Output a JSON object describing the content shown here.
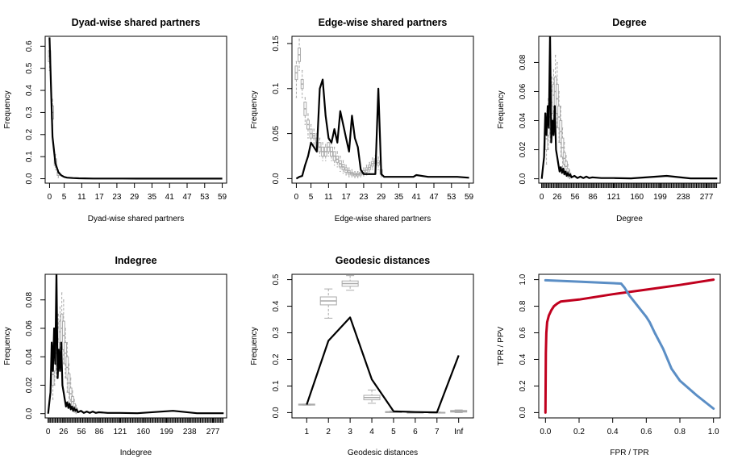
{
  "chart_data": [
    {
      "type": "line",
      "title": "Dyad-wise shared partners",
      "xlabel": "Dyad-wise shared partners",
      "ylabel": "Frequency",
      "xlim": [
        -1.5,
        60.5
      ],
      "ylim": [
        -0.02,
        0.645
      ],
      "xticks": [
        0,
        5,
        11,
        17,
        23,
        29,
        35,
        41,
        47,
        53,
        59
      ],
      "yticks": [
        0.0,
        0.1,
        0.2,
        0.3,
        0.4,
        0.5,
        0.6
      ],
      "observed": {
        "x": [
          0,
          1,
          2,
          3,
          4,
          5,
          6,
          8,
          10,
          12,
          15,
          20,
          25,
          30,
          40,
          50,
          59
        ],
        "y": [
          0.64,
          0.19,
          0.07,
          0.03,
          0.015,
          0.008,
          0.005,
          0.003,
          0.002,
          0.0015,
          0.001,
          0.001,
          0.0008,
          0.0005,
          0.0004,
          0.0003,
          0.0003
        ]
      },
      "simulated": [
        {
          "x": 0,
          "q1": 0.53,
          "q3": 0.58,
          "lo": 0.49,
          "hi": 0.62
        },
        {
          "x": 1,
          "q1": 0.27,
          "q3": 0.33,
          "lo": 0.24,
          "hi": 0.36
        },
        {
          "x": 2,
          "q1": 0.06,
          "q3": 0.09,
          "lo": 0.04,
          "hi": 0.11
        },
        {
          "x": 3,
          "q1": 0.015,
          "q3": 0.03,
          "lo": 0.005,
          "hi": 0.04
        }
      ]
    },
    {
      "type": "line",
      "title": "Edge-wise shared partners",
      "xlabel": "Edge-wise shared partners",
      "ylabel": "Frequency",
      "xlim": [
        -1.5,
        60.5
      ],
      "ylim": [
        -0.005,
        0.158
      ],
      "xticks": [
        0,
        5,
        11,
        17,
        23,
        29,
        35,
        41,
        47,
        53,
        59
      ],
      "yticks": [
        0.0,
        0.05,
        0.1,
        0.15
      ],
      "observed": {
        "x": [
          0,
          1,
          2,
          3,
          4,
          5,
          6,
          7,
          8,
          9,
          10,
          11,
          12,
          13,
          14,
          15,
          16,
          17,
          18,
          19,
          20,
          21,
          22,
          23,
          24,
          25,
          26,
          27,
          28,
          29,
          30,
          31,
          35,
          40,
          41,
          45,
          50,
          55,
          59
        ],
        "y": [
          0.0,
          0.002,
          0.003,
          0.015,
          0.025,
          0.04,
          0.035,
          0.03,
          0.1,
          0.11,
          0.07,
          0.045,
          0.04,
          0.055,
          0.04,
          0.075,
          0.06,
          0.045,
          0.03,
          0.07,
          0.045,
          0.035,
          0.01,
          0.005,
          0.005,
          0.005,
          0.005,
          0.005,
          0.1,
          0.005,
          0.002,
          0.002,
          0.002,
          0.002,
          0.004,
          0.002,
          0.002,
          0.002,
          0.001
        ]
      },
      "simulated": [
        {
          "x": 0,
          "q1": 0.11,
          "q3": 0.125,
          "lo": 0.09,
          "hi": 0.13
        },
        {
          "x": 1,
          "q1": 0.13,
          "q3": 0.145,
          "lo": 0.12,
          "hi": 0.155
        },
        {
          "x": 2,
          "q1": 0.1,
          "q3": 0.11,
          "lo": 0.09,
          "hi": 0.12
        },
        {
          "x": 3,
          "q1": 0.07,
          "q3": 0.085,
          "lo": 0.06,
          "hi": 0.09
        },
        {
          "x": 4,
          "q1": 0.055,
          "q3": 0.065,
          "lo": 0.045,
          "hi": 0.072
        },
        {
          "x": 5,
          "q1": 0.045,
          "q3": 0.055,
          "lo": 0.04,
          "hi": 0.06
        },
        {
          "x": 6,
          "q1": 0.045,
          "q3": 0.05,
          "lo": 0.038,
          "hi": 0.055
        },
        {
          "x": 7,
          "q1": 0.035,
          "q3": 0.045,
          "lo": 0.03,
          "hi": 0.05
        },
        {
          "x": 8,
          "q1": 0.03,
          "q3": 0.04,
          "lo": 0.025,
          "hi": 0.045
        },
        {
          "x": 9,
          "q1": 0.025,
          "q3": 0.035,
          "lo": 0.02,
          "hi": 0.04
        },
        {
          "x": 10,
          "q1": 0.025,
          "q3": 0.035,
          "lo": 0.02,
          "hi": 0.038
        },
        {
          "x": 11,
          "q1": 0.03,
          "q3": 0.04,
          "lo": 0.025,
          "hi": 0.045
        },
        {
          "x": 12,
          "q1": 0.025,
          "q3": 0.035,
          "lo": 0.02,
          "hi": 0.04
        },
        {
          "x": 13,
          "q1": 0.02,
          "q3": 0.03,
          "lo": 0.015,
          "hi": 0.035
        },
        {
          "x": 14,
          "q1": 0.018,
          "q3": 0.025,
          "lo": 0.013,
          "hi": 0.03
        },
        {
          "x": 15,
          "q1": 0.013,
          "q3": 0.02,
          "lo": 0.008,
          "hi": 0.025
        },
        {
          "x": 16,
          "q1": 0.01,
          "q3": 0.016,
          "lo": 0.006,
          "hi": 0.02
        },
        {
          "x": 17,
          "q1": 0.007,
          "q3": 0.012,
          "lo": 0.004,
          "hi": 0.015
        },
        {
          "x": 18,
          "q1": 0.005,
          "q3": 0.009,
          "lo": 0.002,
          "hi": 0.012
        },
        {
          "x": 19,
          "q1": 0.004,
          "q3": 0.007,
          "lo": 0.002,
          "hi": 0.01
        },
        {
          "x": 20,
          "q1": 0.003,
          "q3": 0.006,
          "lo": 0.001,
          "hi": 0.008
        },
        {
          "x": 21,
          "q1": 0.003,
          "q3": 0.006,
          "lo": 0.001,
          "hi": 0.008
        },
        {
          "x": 22,
          "q1": 0.004,
          "q3": 0.007,
          "lo": 0.002,
          "hi": 0.009
        },
        {
          "x": 23,
          "q1": 0.005,
          "q3": 0.009,
          "lo": 0.003,
          "hi": 0.012
        },
        {
          "x": 24,
          "q1": 0.007,
          "q3": 0.012,
          "lo": 0.004,
          "hi": 0.015
        },
        {
          "x": 25,
          "q1": 0.01,
          "q3": 0.015,
          "lo": 0.006,
          "hi": 0.018
        },
        {
          "x": 26,
          "q1": 0.014,
          "q3": 0.019,
          "lo": 0.01,
          "hi": 0.023
        },
        {
          "x": 27,
          "q1": 0.017,
          "q3": 0.022,
          "lo": 0.013,
          "hi": 0.026
        },
        {
          "x": 28,
          "q1": 0.015,
          "q3": 0.02,
          "lo": 0.01,
          "hi": 0.024
        },
        {
          "x": 29,
          "q1": 0.005,
          "q3": 0.01,
          "lo": 0.002,
          "hi": 0.013
        }
      ]
    },
    {
      "type": "line",
      "title": "Degree",
      "xlabel": "Degree",
      "ylabel": "Frequency",
      "xlim": [
        -5,
        300
      ],
      "ylim": [
        -0.003,
        0.098
      ],
      "xticks": [
        0,
        26,
        56,
        86,
        121,
        160,
        199,
        238,
        277
      ],
      "yticks": [
        0.0,
        0.02,
        0.04,
        0.06,
        0.08
      ],
      "observed": {
        "x": [
          0,
          2,
          4,
          6,
          8,
          10,
          12,
          14,
          16,
          18,
          20,
          22,
          24,
          26,
          28,
          30,
          32,
          34,
          36,
          38,
          40,
          42,
          44,
          46,
          48,
          50,
          55,
          60,
          65,
          70,
          75,
          80,
          85,
          100,
          121,
          150,
          210,
          250,
          295
        ],
        "y": [
          0.0,
          0.008,
          0.015,
          0.045,
          0.03,
          0.05,
          0.035,
          0.1,
          0.025,
          0.04,
          0.03,
          0.05,
          0.02,
          0.015,
          0.01,
          0.005,
          0.008,
          0.004,
          0.007,
          0.003,
          0.005,
          0.002,
          0.004,
          0.002,
          0.003,
          0.001,
          0.002,
          0.0005,
          0.0015,
          0.0005,
          0.0015,
          0.0005,
          0.001,
          0.0005,
          0.0005,
          0.0003,
          0.002,
          0.0003,
          0.0003
        ]
      },
      "simulated": [
        {
          "x": 8,
          "q1": 0.02,
          "q3": 0.035,
          "lo": 0.01,
          "hi": 0.045
        },
        {
          "x": 11,
          "q1": 0.03,
          "q3": 0.045,
          "lo": 0.02,
          "hi": 0.055
        },
        {
          "x": 14,
          "q1": 0.035,
          "q3": 0.05,
          "lo": 0.025,
          "hi": 0.06
        },
        {
          "x": 17,
          "q1": 0.045,
          "q3": 0.06,
          "lo": 0.035,
          "hi": 0.07
        },
        {
          "x": 20,
          "q1": 0.05,
          "q3": 0.065,
          "lo": 0.04,
          "hi": 0.075
        },
        {
          "x": 23,
          "q1": 0.05,
          "q3": 0.07,
          "lo": 0.04,
          "hi": 0.085
        },
        {
          "x": 26,
          "q1": 0.045,
          "q3": 0.065,
          "lo": 0.035,
          "hi": 0.08
        },
        {
          "x": 29,
          "q1": 0.035,
          "q3": 0.05,
          "lo": 0.025,
          "hi": 0.06
        },
        {
          "x": 32,
          "q1": 0.025,
          "q3": 0.04,
          "lo": 0.015,
          "hi": 0.05
        },
        {
          "x": 35,
          "q1": 0.015,
          "q3": 0.028,
          "lo": 0.008,
          "hi": 0.035
        },
        {
          "x": 38,
          "q1": 0.01,
          "q3": 0.018,
          "lo": 0.005,
          "hi": 0.025
        },
        {
          "x": 41,
          "q1": 0.005,
          "q3": 0.012,
          "lo": 0.002,
          "hi": 0.016
        },
        {
          "x": 44,
          "q1": 0.003,
          "q3": 0.007,
          "lo": 0.001,
          "hi": 0.01
        },
        {
          "x": 47,
          "q1": 0.001,
          "q3": 0.004,
          "lo": 0.0,
          "hi": 0.006
        }
      ]
    },
    {
      "type": "line",
      "title": "Indegree",
      "xlabel": "Indegree",
      "ylabel": "Frequency",
      "xlim": [
        -5,
        300
      ],
      "ylim": [
        -0.003,
        0.098
      ],
      "xticks": [
        0,
        26,
        56,
        86,
        121,
        160,
        199,
        238,
        277
      ],
      "yticks": [
        0.0,
        0.02,
        0.04,
        0.06,
        0.08
      ],
      "observed": {
        "x": [
          0,
          2,
          4,
          6,
          8,
          10,
          12,
          14,
          16,
          18,
          20,
          22,
          24,
          26,
          28,
          30,
          32,
          34,
          36,
          38,
          40,
          42,
          44,
          46,
          48,
          50,
          55,
          60,
          65,
          70,
          75,
          80,
          85,
          100,
          121,
          150,
          210,
          250,
          295
        ],
        "y": [
          0.0,
          0.008,
          0.015,
          0.05,
          0.03,
          0.06,
          0.035,
          0.1,
          0.025,
          0.045,
          0.03,
          0.05,
          0.02,
          0.015,
          0.01,
          0.005,
          0.008,
          0.004,
          0.007,
          0.003,
          0.005,
          0.002,
          0.004,
          0.002,
          0.003,
          0.001,
          0.002,
          0.0005,
          0.0015,
          0.0005,
          0.0015,
          0.0005,
          0.001,
          0.0005,
          0.0005,
          0.0003,
          0.002,
          0.0003,
          0.0003
        ]
      },
      "simulated": [
        {
          "x": 8,
          "q1": 0.02,
          "q3": 0.035,
          "lo": 0.01,
          "hi": 0.045
        },
        {
          "x": 11,
          "q1": 0.03,
          "q3": 0.045,
          "lo": 0.02,
          "hi": 0.055
        },
        {
          "x": 14,
          "q1": 0.035,
          "q3": 0.05,
          "lo": 0.025,
          "hi": 0.06
        },
        {
          "x": 17,
          "q1": 0.045,
          "q3": 0.06,
          "lo": 0.035,
          "hi": 0.07
        },
        {
          "x": 20,
          "q1": 0.05,
          "q3": 0.065,
          "lo": 0.04,
          "hi": 0.075
        },
        {
          "x": 23,
          "q1": 0.05,
          "q3": 0.07,
          "lo": 0.04,
          "hi": 0.085
        },
        {
          "x": 26,
          "q1": 0.045,
          "q3": 0.065,
          "lo": 0.035,
          "hi": 0.08
        },
        {
          "x": 29,
          "q1": 0.035,
          "q3": 0.05,
          "lo": 0.025,
          "hi": 0.06
        },
        {
          "x": 32,
          "q1": 0.025,
          "q3": 0.04,
          "lo": 0.015,
          "hi": 0.05
        },
        {
          "x": 35,
          "q1": 0.015,
          "q3": 0.028,
          "lo": 0.008,
          "hi": 0.035
        },
        {
          "x": 38,
          "q1": 0.01,
          "q3": 0.018,
          "lo": 0.005,
          "hi": 0.025
        },
        {
          "x": 41,
          "q1": 0.005,
          "q3": 0.012,
          "lo": 0.002,
          "hi": 0.016
        },
        {
          "x": 44,
          "q1": 0.003,
          "q3": 0.007,
          "lo": 0.001,
          "hi": 0.01
        },
        {
          "x": 47,
          "q1": 0.001,
          "q3": 0.004,
          "lo": 0.0,
          "hi": 0.006
        }
      ]
    },
    {
      "type": "line",
      "title": "Geodesic distances",
      "xlabel": "Geodesic distances",
      "ylabel": "Frequency",
      "categories": [
        "1",
        "2",
        "3",
        "4",
        "5",
        "6",
        "7",
        "Inf"
      ],
      "xlim": [
        0.32,
        8.68
      ],
      "ylim": [
        -0.02,
        0.52
      ],
      "yticks": [
        0.0,
        0.1,
        0.2,
        0.3,
        0.4,
        0.5
      ],
      "observed": {
        "values": [
          0.03,
          0.27,
          0.358,
          0.125,
          0.005,
          0.002,
          0.001,
          0.215
        ]
      },
      "simulated": [
        {
          "x": 1,
          "q1": 0.028,
          "q3": 0.032,
          "lo": 0.028,
          "hi": 0.032
        },
        {
          "x": 2,
          "q1": 0.405,
          "q3": 0.435,
          "lo": 0.355,
          "hi": 0.465
        },
        {
          "x": 3,
          "q1": 0.475,
          "q3": 0.495,
          "lo": 0.46,
          "hi": 0.515
        },
        {
          "x": 4,
          "q1": 0.048,
          "q3": 0.065,
          "lo": 0.035,
          "hi": 0.085
        },
        {
          "x": 5,
          "q1": 0.0,
          "q3": 0.004,
          "lo": 0.0,
          "hi": 0.006
        },
        {
          "x": 6,
          "q1": 0.0,
          "q3": 0.001,
          "lo": 0.0,
          "hi": 0.002
        },
        {
          "x": 7,
          "q1": 0.0,
          "q3": 0.001,
          "lo": 0.0,
          "hi": 0.002
        },
        {
          "x": 8,
          "q1": 0.002,
          "q3": 0.008,
          "lo": 0.0,
          "hi": 0.01
        }
      ]
    },
    {
      "type": "line",
      "title": "",
      "xlabel": "FPR / TPR",
      "ylabel": "TPR / PPV",
      "xlim": [
        -0.04,
        1.04
      ],
      "ylim": [
        -0.04,
        1.04
      ],
      "xticks": [
        0.0,
        0.2,
        0.4,
        0.6,
        0.8,
        1.0
      ],
      "yticks": [
        0.0,
        0.2,
        0.4,
        0.6,
        0.8,
        1.0
      ],
      "series": [
        {
          "color": "#c0001e",
          "x": [
            0.0,
            0.002,
            0.005,
            0.01,
            0.02,
            0.035,
            0.05,
            0.07,
            0.09,
            0.2,
            0.4,
            0.6,
            0.8,
            1.0
          ],
          "y": [
            0.0,
            0.45,
            0.6,
            0.68,
            0.73,
            0.77,
            0.8,
            0.82,
            0.835,
            0.85,
            0.89,
            0.925,
            0.96,
            1.0
          ]
        },
        {
          "color": "#5b8ec5",
          "x": [
            0.0,
            0.2,
            0.45,
            0.47,
            0.5,
            0.55,
            0.6,
            0.62,
            0.65,
            0.7,
            0.75,
            0.8,
            0.9,
            1.0
          ],
          "y": [
            0.995,
            0.985,
            0.97,
            0.94,
            0.88,
            0.8,
            0.72,
            0.68,
            0.6,
            0.48,
            0.33,
            0.24,
            0.13,
            0.03
          ]
        }
      ]
    }
  ]
}
